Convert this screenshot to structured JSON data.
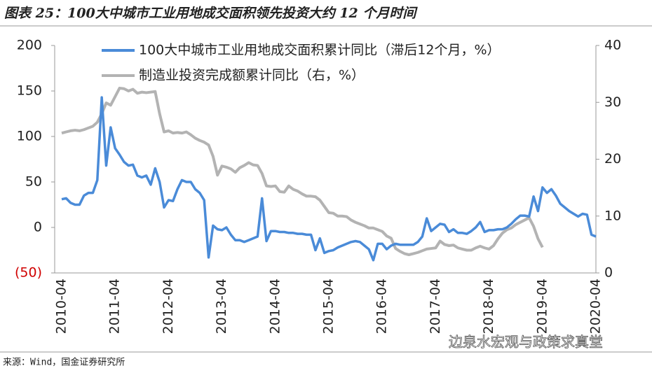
{
  "chart_data": {
    "type": "line",
    "title": "图表 25：100大中城市工业用地成交面积领先投资大约 12 个月时间",
    "source": "来源：Wind，国金证券研究所",
    "watermark": "边泉水宏观与政策求真堂",
    "categories": [
      "2010-04",
      null,
      null,
      null,
      null,
      null,
      null,
      null,
      null,
      null,
      null,
      null,
      "2011-04",
      null,
      null,
      null,
      null,
      null,
      null,
      null,
      null,
      null,
      null,
      null,
      "2012-04",
      null,
      null,
      null,
      null,
      null,
      null,
      null,
      null,
      null,
      null,
      null,
      "2013-04",
      null,
      null,
      null,
      null,
      null,
      null,
      null,
      null,
      null,
      null,
      null,
      "2014-04",
      null,
      null,
      null,
      null,
      null,
      null,
      null,
      null,
      null,
      null,
      null,
      "2015-04",
      null,
      null,
      null,
      null,
      null,
      null,
      null,
      null,
      null,
      null,
      null,
      "2016-04",
      null,
      null,
      null,
      null,
      null,
      null,
      null,
      null,
      null,
      null,
      null,
      "2017-04",
      null,
      null,
      null,
      null,
      null,
      null,
      null,
      null,
      null,
      null,
      null,
      "2018-04",
      null,
      null,
      null,
      null,
      null,
      null,
      null,
      null,
      null,
      null,
      null,
      "2019-04",
      null,
      null,
      null,
      null,
      null,
      null,
      null,
      null,
      null,
      null,
      null,
      "2020-04"
    ],
    "series": [
      {
        "name": "100大中城市工业用地成交面积累计同比（滞后12个月，%）",
        "color": "#4a8bd8",
        "axis": "y",
        "values": [
          31,
          32,
          27,
          25,
          25,
          35,
          38,
          38,
          52,
          143,
          68,
          110,
          87,
          80,
          72,
          68,
          69,
          57,
          55,
          57,
          47,
          65,
          50,
          22,
          30,
          29,
          42,
          52,
          50,
          50,
          42,
          38,
          30,
          -33,
          2,
          -2,
          -3,
          0,
          -8,
          -14,
          -14,
          -16,
          -14,
          -12,
          -10,
          32,
          -15,
          -4,
          -4,
          -5,
          -5,
          -6,
          -6,
          -7,
          -7,
          -8,
          -8,
          -25,
          -12,
          -28,
          -26,
          -25,
          -22,
          -20,
          -18,
          -16,
          -15,
          -16,
          -20,
          -24,
          -36,
          -18,
          -18,
          -24,
          -20,
          -18,
          -19,
          -19,
          -19,
          -19,
          -16,
          -10,
          10,
          -4,
          0,
          4,
          3,
          -5,
          -2,
          -6,
          -6,
          -7,
          -4,
          0,
          6,
          -5,
          -3,
          -3,
          -2,
          -2,
          0,
          4,
          9,
          13,
          13,
          12,
          34,
          18,
          44,
          38,
          42,
          35,
          26,
          22,
          18,
          15,
          12,
          15,
          14,
          -8,
          -10
        ]
      },
      {
        "name": "制造业投资完成额累计同比（右，%）",
        "color": "#b3b3b3",
        "axis": "y2",
        "values": [
          24.6,
          24.8,
          25,
          25.1,
          25,
          25.2,
          25.5,
          25.8,
          26.5,
          28,
          29.9,
          29.5,
          31,
          32.5,
          32.4,
          32,
          32.3,
          31.6,
          31.8,
          31.7,
          31.8,
          31.9,
          28,
          24.8,
          25,
          24.6,
          24.7,
          24.6,
          24.8,
          24.3,
          23.7,
          23.3,
          23,
          22.5,
          20.5,
          17.2,
          18.8,
          18.6,
          18.3,
          17.7,
          18.5,
          18.9,
          19.4,
          19,
          18.9,
          17.5,
          15.3,
          15.2,
          15.3,
          14.3,
          14.2,
          15.3,
          14.7,
          14.4,
          13.9,
          13.5,
          13.5,
          13.4,
          12.8,
          11.7,
          10.6,
          10.5,
          10,
          10,
          9.9,
          9.3,
          8.9,
          8.6,
          8.3,
          7.9,
          7.9,
          7.6,
          7.3,
          6.5,
          6.1,
          4.3,
          3.8,
          3.4,
          3.2,
          3.4,
          3.6,
          3.9,
          4.2,
          4.3,
          4.4,
          5.6,
          5,
          4.8,
          4.9,
          4.4,
          4.2,
          4,
          4,
          4.4,
          4.7,
          4.4,
          4.2,
          4.8,
          6,
          7,
          7.6,
          7.9,
          8.5,
          8.9,
          9.3,
          9.7,
          8.2,
          6,
          4.5,
          null,
          null,
          null,
          null,
          null,
          null,
          null,
          null,
          null,
          null,
          null,
          null
        ]
      }
    ],
    "ylim": [
      -50,
      200
    ],
    "yticks": [
      200,
      150,
      100,
      50,
      0,
      {
        "value": -50,
        "label": "(50)"
      }
    ],
    "y2lim": [
      0,
      40
    ],
    "y2ticks": [
      40,
      30,
      20,
      10,
      0
    ]
  }
}
